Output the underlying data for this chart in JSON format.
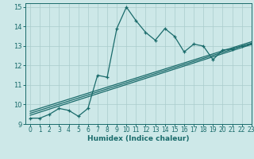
{
  "title": "",
  "xlabel": "Humidex (Indice chaleur)",
  "ylabel": "",
  "bg_color": "#cde8e8",
  "line_color": "#1a6b6b",
  "grid_color": "#aacccc",
  "xlim": [
    -0.5,
    23
  ],
  "ylim": [
    9,
    15.2
  ],
  "xticks": [
    0,
    1,
    2,
    3,
    4,
    5,
    6,
    7,
    8,
    9,
    10,
    11,
    12,
    13,
    14,
    15,
    16,
    17,
    18,
    19,
    20,
    21,
    22,
    23
  ],
  "yticks": [
    9,
    10,
    11,
    12,
    13,
    14,
    15
  ],
  "main_x": [
    0,
    1,
    2,
    3,
    4,
    5,
    6,
    7,
    8,
    9,
    10,
    11,
    12,
    13,
    14,
    15,
    16,
    17,
    18,
    19,
    20,
    21,
    22,
    23
  ],
  "main_y": [
    9.3,
    9.3,
    9.5,
    9.8,
    9.7,
    9.4,
    9.8,
    11.5,
    11.4,
    13.9,
    15.0,
    14.3,
    13.7,
    13.3,
    13.9,
    13.5,
    12.7,
    13.1,
    13.0,
    12.3,
    12.8,
    12.85,
    13.0,
    13.1
  ],
  "reg_lines": [
    {
      "x": [
        0,
        23
      ],
      "y": [
        9.55,
        13.15
      ]
    },
    {
      "x": [
        0,
        23
      ],
      "y": [
        9.65,
        13.22
      ]
    },
    {
      "x": [
        0,
        23
      ],
      "y": [
        9.45,
        13.08
      ]
    }
  ]
}
